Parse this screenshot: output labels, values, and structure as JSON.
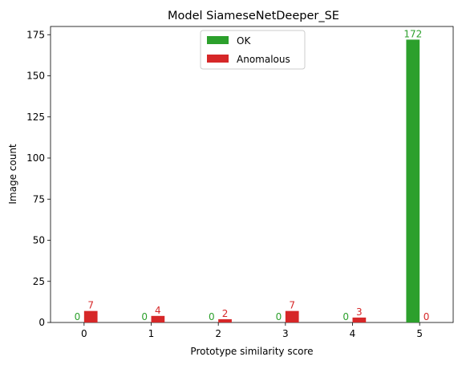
{
  "chart_data": {
    "type": "bar",
    "title": "Model SiameseNetDeeper_SE",
    "xlabel": "Prototype similarity score",
    "ylabel": "Image count",
    "categories": [
      "0",
      "1",
      "2",
      "3",
      "4",
      "5"
    ],
    "series": [
      {
        "name": "OK",
        "color": "#2ca02c",
        "values": [
          0,
          0,
          0,
          0,
          0,
          172
        ]
      },
      {
        "name": "Anomalous",
        "color": "#d62728",
        "values": [
          7,
          4,
          2,
          7,
          3,
          0
        ]
      }
    ],
    "ylim": [
      0,
      180
    ],
    "yticks": [
      0,
      25,
      50,
      75,
      100,
      125,
      150,
      175
    ],
    "xlim": [
      -0.5,
      5.5
    ],
    "legend_position": "upper-center",
    "grid": false
  }
}
